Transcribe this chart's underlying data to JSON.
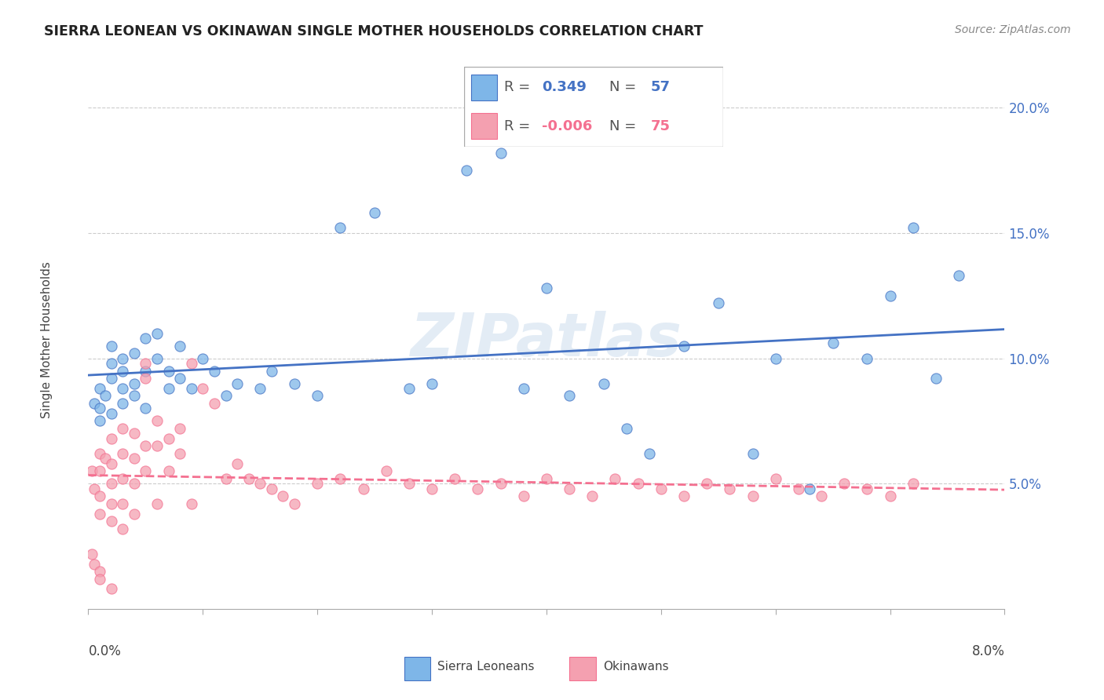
{
  "title": "SIERRA LEONEAN VS OKINAWAN SINGLE MOTHER HOUSEHOLDS CORRELATION CHART",
  "source": "Source: ZipAtlas.com",
  "ylabel": "Single Mother Households",
  "yticks": [
    0.0,
    0.05,
    0.1,
    0.15,
    0.2
  ],
  "ytick_labels": [
    "",
    "5.0%",
    "10.0%",
    "15.0%",
    "20.0%"
  ],
  "xlim": [
    0.0,
    0.08
  ],
  "ylim": [
    0.0,
    0.215
  ],
  "watermark": "ZIPatlas",
  "blue_color": "#7EB6E8",
  "pink_color": "#F4A0B0",
  "trendline_blue_color": "#4472C4",
  "trendline_pink_color": "#F47090",
  "blue_R": "0.349",
  "blue_N": "57",
  "pink_R": "-0.006",
  "pink_N": "75",
  "sierra_x": [
    0.0005,
    0.001,
    0.001,
    0.001,
    0.0015,
    0.002,
    0.002,
    0.002,
    0.002,
    0.003,
    0.003,
    0.003,
    0.003,
    0.004,
    0.004,
    0.004,
    0.005,
    0.005,
    0.005,
    0.006,
    0.006,
    0.007,
    0.007,
    0.008,
    0.008,
    0.009,
    0.01,
    0.011,
    0.012,
    0.013,
    0.015,
    0.016,
    0.018,
    0.02,
    0.022,
    0.025,
    0.028,
    0.03,
    0.033,
    0.036,
    0.038,
    0.04,
    0.042,
    0.045,
    0.047,
    0.049,
    0.052,
    0.055,
    0.058,
    0.06,
    0.063,
    0.065,
    0.068,
    0.07,
    0.072,
    0.074,
    0.076
  ],
  "sierra_y": [
    0.082,
    0.08,
    0.088,
    0.075,
    0.085,
    0.078,
    0.092,
    0.098,
    0.105,
    0.095,
    0.088,
    0.1,
    0.082,
    0.102,
    0.09,
    0.085,
    0.108,
    0.095,
    0.08,
    0.11,
    0.1,
    0.095,
    0.088,
    0.092,
    0.105,
    0.088,
    0.1,
    0.095,
    0.085,
    0.09,
    0.088,
    0.095,
    0.09,
    0.085,
    0.152,
    0.158,
    0.088,
    0.09,
    0.175,
    0.182,
    0.088,
    0.128,
    0.085,
    0.09,
    0.072,
    0.062,
    0.105,
    0.122,
    0.062,
    0.1,
    0.048,
    0.106,
    0.1,
    0.125,
    0.152,
    0.092,
    0.133
  ],
  "okinawa_x": [
    0.0003,
    0.0005,
    0.001,
    0.001,
    0.001,
    0.001,
    0.0015,
    0.002,
    0.002,
    0.002,
    0.002,
    0.002,
    0.003,
    0.003,
    0.003,
    0.003,
    0.003,
    0.004,
    0.004,
    0.004,
    0.004,
    0.005,
    0.005,
    0.005,
    0.005,
    0.006,
    0.006,
    0.006,
    0.007,
    0.007,
    0.008,
    0.008,
    0.009,
    0.009,
    0.01,
    0.011,
    0.012,
    0.013,
    0.014,
    0.015,
    0.016,
    0.017,
    0.018,
    0.02,
    0.022,
    0.024,
    0.026,
    0.028,
    0.03,
    0.032,
    0.034,
    0.036,
    0.038,
    0.04,
    0.042,
    0.044,
    0.046,
    0.048,
    0.05,
    0.052,
    0.054,
    0.056,
    0.058,
    0.06,
    0.062,
    0.064,
    0.066,
    0.068,
    0.07,
    0.072,
    0.0003,
    0.0005,
    0.001,
    0.001,
    0.002
  ],
  "okinawa_y": [
    0.055,
    0.048,
    0.062,
    0.055,
    0.045,
    0.038,
    0.06,
    0.068,
    0.058,
    0.05,
    0.042,
    0.035,
    0.072,
    0.062,
    0.052,
    0.042,
    0.032,
    0.07,
    0.06,
    0.05,
    0.038,
    0.098,
    0.092,
    0.065,
    0.055,
    0.075,
    0.065,
    0.042,
    0.068,
    0.055,
    0.072,
    0.062,
    0.098,
    0.042,
    0.088,
    0.082,
    0.052,
    0.058,
    0.052,
    0.05,
    0.048,
    0.045,
    0.042,
    0.05,
    0.052,
    0.048,
    0.055,
    0.05,
    0.048,
    0.052,
    0.048,
    0.05,
    0.045,
    0.052,
    0.048,
    0.045,
    0.052,
    0.05,
    0.048,
    0.045,
    0.05,
    0.048,
    0.045,
    0.052,
    0.048,
    0.045,
    0.05,
    0.048,
    0.045,
    0.05,
    0.022,
    0.018,
    0.015,
    0.012,
    0.008
  ]
}
